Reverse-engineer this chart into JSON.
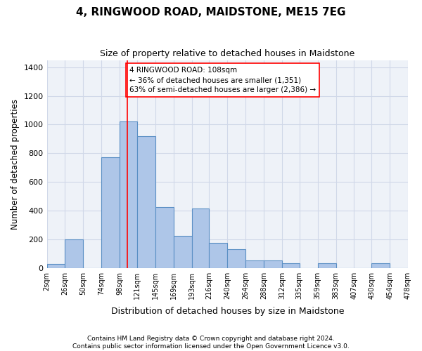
{
  "title": "4, RINGWOOD ROAD, MAIDSTONE, ME15 7EG",
  "subtitle": "Size of property relative to detached houses in Maidstone",
  "xlabel": "Distribution of detached houses by size in Maidstone",
  "ylabel": "Number of detached properties",
  "footnote1": "Contains HM Land Registry data © Crown copyright and database right 2024.",
  "footnote2": "Contains public sector information licensed under the Open Government Licence v3.0.",
  "annotation_line1": "4 RINGWOOD ROAD: 108sqm",
  "annotation_line2": "← 36% of detached houses are smaller (1,351)",
  "annotation_line3": "63% of semi-detached houses are larger (2,386) →",
  "bar_color": "#aec6e8",
  "bar_edge_color": "#5a8fc4",
  "grid_color": "#d0d8e8",
  "background_color": "#eef2f8",
  "vline_x": 108,
  "vline_color": "red",
  "bin_edges": [
    2,
    26,
    50,
    74,
    98,
    121,
    145,
    169,
    193,
    216,
    240,
    264,
    288,
    312,
    335,
    359,
    383,
    407,
    430,
    454,
    478
  ],
  "bar_heights": [
    30,
    200,
    0,
    770,
    1020,
    920,
    425,
    225,
    415,
    175,
    130,
    55,
    55,
    35,
    0,
    35,
    0,
    0,
    35,
    0
  ],
  "ylim": [
    0,
    1450
  ],
  "yticks": [
    0,
    200,
    400,
    600,
    800,
    1000,
    1200,
    1400
  ]
}
